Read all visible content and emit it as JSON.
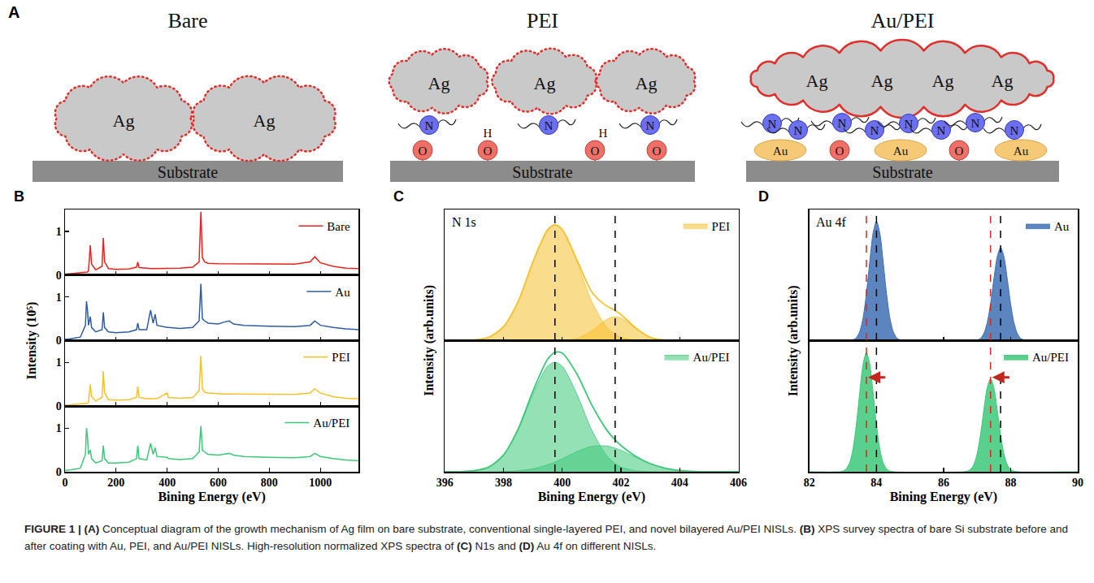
{
  "diagram": {
    "label": "A",
    "panels": [
      {
        "title": "Bare",
        "film": [
          "Ag",
          "Ag"
        ],
        "substrate": "Substrate"
      },
      {
        "title": "PEI",
        "film": [
          "Ag",
          "Ag",
          "Ag"
        ],
        "linkers": [
          "N",
          "H",
          "N",
          "H",
          "N"
        ],
        "surface": [
          "O",
          "O",
          "O",
          "O"
        ],
        "substrate": "Substrate"
      },
      {
        "title": "Au/PEI",
        "film": [
          "Ag",
          "Ag",
          "Ag",
          "Ag"
        ],
        "linkers": [
          "N",
          "N",
          "N",
          "N",
          "N",
          "N",
          "N",
          "N"
        ],
        "surface": [
          "Au",
          "O",
          "Au",
          "O",
          "Au"
        ],
        "substrate": "Substrate"
      }
    ]
  },
  "chart_data": [
    {
      "label": "B",
      "type": "line",
      "x_title": "Bining Energy (eV)",
      "y_title": "Intensity (10⁵)",
      "xlim": [
        0,
        1150
      ],
      "xticks": [
        0,
        200,
        400,
        600,
        800,
        1000
      ],
      "ylim": [
        0,
        1.5
      ],
      "yticks": [
        0,
        1
      ],
      "legend": "upper right",
      "x": [
        0,
        20,
        60,
        80,
        84,
        88,
        92,
        99,
        104,
        120,
        145,
        150,
        155,
        170,
        200,
        250,
        280,
        285,
        290,
        320,
        335,
        345,
        353,
        360,
        400,
        405,
        450,
        500,
        525,
        532,
        538,
        547,
        560,
        600,
        620,
        643,
        660,
        700,
        800,
        900,
        960,
        978,
        1000,
        1050,
        1100,
        1150
      ],
      "series": [
        {
          "name": "Bare",
          "color": "#e8231c",
          "values": [
            0.02,
            0.03,
            0.05,
            0.06,
            0.07,
            0.07,
            0.1,
            0.68,
            0.25,
            0.12,
            0.2,
            0.85,
            0.3,
            0.15,
            0.13,
            0.14,
            0.18,
            0.3,
            0.17,
            0.15,
            0.15,
            0.15,
            0.15,
            0.15,
            0.15,
            0.15,
            0.16,
            0.18,
            0.3,
            1.45,
            0.4,
            0.3,
            0.27,
            0.26,
            0.26,
            0.26,
            0.26,
            0.25,
            0.25,
            0.25,
            0.3,
            0.42,
            0.28,
            0.2,
            0.16,
            0.15
          ]
        },
        {
          "name": "Au",
          "color": "#2e5d9f",
          "values": [
            0.03,
            0.04,
            0.08,
            0.35,
            0.9,
            0.7,
            0.35,
            0.55,
            0.3,
            0.2,
            0.25,
            0.65,
            0.3,
            0.2,
            0.18,
            0.2,
            0.25,
            0.4,
            0.25,
            0.25,
            0.7,
            0.4,
            0.6,
            0.35,
            0.3,
            0.3,
            0.28,
            0.3,
            0.45,
            1.3,
            0.5,
            0.45,
            0.4,
            0.38,
            0.42,
            0.45,
            0.38,
            0.35,
            0.33,
            0.32,
            0.35,
            0.45,
            0.35,
            0.3,
            0.27,
            0.25
          ]
        },
        {
          "name": "PEI",
          "color": "#f5c12e",
          "values": [
            0.02,
            0.03,
            0.05,
            0.06,
            0.07,
            0.07,
            0.1,
            0.5,
            0.22,
            0.12,
            0.2,
            0.8,
            0.3,
            0.15,
            0.14,
            0.15,
            0.2,
            0.45,
            0.2,
            0.17,
            0.17,
            0.17,
            0.17,
            0.17,
            0.3,
            0.2,
            0.18,
            0.2,
            0.35,
            1.15,
            0.4,
            0.32,
            0.3,
            0.28,
            0.28,
            0.28,
            0.28,
            0.27,
            0.27,
            0.27,
            0.3,
            0.4,
            0.3,
            0.22,
            0.18,
            0.17
          ]
        },
        {
          "name": "Au/PEI",
          "color": "#3cc878",
          "values": [
            0.03,
            0.04,
            0.08,
            0.4,
            1.0,
            0.8,
            0.4,
            0.5,
            0.3,
            0.2,
            0.25,
            0.6,
            0.3,
            0.2,
            0.2,
            0.22,
            0.3,
            0.6,
            0.3,
            0.27,
            0.65,
            0.4,
            0.55,
            0.35,
            0.33,
            0.3,
            0.28,
            0.3,
            0.45,
            1.05,
            0.5,
            0.45,
            0.4,
            0.38,
            0.4,
            0.42,
            0.38,
            0.35,
            0.33,
            0.32,
            0.35,
            0.42,
            0.35,
            0.3,
            0.27,
            0.25
          ]
        }
      ]
    },
    {
      "label": "C",
      "type": "area",
      "title": "N 1s",
      "x_title": "Bining Energy (eV)",
      "y_title": "Intensity (arb.units)",
      "xlim": [
        396,
        406
      ],
      "xticks": [
        396,
        398,
        400,
        402,
        404,
        406
      ],
      "ylim": [
        0,
        1.1
      ],
      "tick_labels": "x",
      "legend": "upper right",
      "x": [
        396,
        396.5,
        397,
        397.5,
        398,
        398.5,
        399,
        399.5,
        399.75,
        400,
        400.5,
        401,
        401.5,
        401.75,
        402,
        402.5,
        403,
        403.5,
        404,
        404.5,
        405,
        406
      ],
      "reference_lines": [
        {
          "x": 399.75,
          "color": "#000000"
        },
        {
          "x": 401.8,
          "color": "#000000"
        }
      ],
      "series": [
        {
          "name": "PEI",
          "color": "#f5c12e",
          "values": [
            0,
            0,
            0.005,
            0.029,
            0.116,
            0.329,
            0.658,
            0.929,
            0.971,
            0.931,
            0.677,
            0.411,
            0.292,
            0.26,
            0.218,
            0.106,
            0.027,
            0.004,
            0,
            0,
            0,
            0
          ],
          "components": [
            [
              0,
              0,
              0.005,
              0.029,
              0.116,
              0.329,
              0.658,
              0.929,
              0.97,
              0.929,
              0.658,
              0.329,
              0.116,
              0.061,
              0.029,
              0.005,
              0,
              0,
              0,
              0,
              0,
              0
            ],
            [
              0,
              0,
              0,
              0,
              0,
              0,
              0,
              0,
              0.001,
              0.002,
              0.019,
              0.082,
              0.176,
              0.199,
              0.189,
              0.101,
              0.027,
              0.004,
              0,
              0,
              0,
              0
            ]
          ]
        },
        {
          "name": "Au/PEI",
          "color": "#3cc878",
          "values": [
            0,
            0.001,
            0.009,
            0.04,
            0.141,
            0.36,
            0.675,
            0.943,
            1.001,
            0.994,
            0.819,
            0.563,
            0.355,
            0.28,
            0.22,
            0.13,
            0.068,
            0.03,
            0.011,
            0.003,
            0.001,
            0
          ],
          "components": [
            [
              0,
              0.001,
              0.009,
              0.04,
              0.139,
              0.351,
              0.65,
              0.885,
              0.92,
              0.885,
              0.65,
              0.351,
              0.139,
              0.078,
              0.04,
              0.009,
              0.001,
              0,
              0,
              0,
              0,
              0
            ],
            [
              0,
              0,
              0,
              0,
              0.002,
              0.009,
              0.025,
              0.058,
              0.081,
              0.109,
              0.169,
              0.212,
              0.216,
              0.202,
              0.18,
              0.121,
              0.067,
              0.03,
              0.011,
              0.003,
              0.001,
              0
            ]
          ]
        }
      ]
    },
    {
      "label": "D",
      "type": "area",
      "title": "Au 4f",
      "x_title": "Bining Energy (eV)",
      "y_title": "Intensity (arb.units)",
      "xlim": [
        82,
        90
      ],
      "xticks": [
        82,
        84,
        86,
        88,
        90
      ],
      "ylim": [
        0,
        1.1
      ],
      "tick_labels": "x",
      "legend": "upper right",
      "reference_lines": [
        {
          "x": 84.0,
          "color": "#000000"
        },
        {
          "x": 87.7,
          "color": "#000000"
        },
        {
          "x": 83.7,
          "color": "#d62a1e"
        },
        {
          "x": 87.4,
          "color": "#d62a1e"
        }
      ],
      "series": [
        {
          "name": "Au",
          "color": "#3f6fb3",
          "x": [
            82,
            83.2,
            83.3,
            83.4,
            83.5,
            83.6,
            83.7,
            83.8,
            83.9,
            84,
            84.1,
            84.2,
            84.3,
            84.4,
            84.5,
            84.6,
            84.7,
            84.8,
            86.9,
            87,
            87.1,
            87.2,
            87.3,
            87.4,
            87.5,
            87.6,
            87.7,
            87.8,
            87.9,
            88,
            88.1,
            88.2,
            88.3,
            88.4,
            88.5,
            90
          ],
          "values": [
            0,
            0,
            0.006,
            0.024,
            0.076,
            0.191,
            0.395,
            0.661,
            0.902,
            1,
            0.902,
            0.661,
            0.395,
            0.191,
            0.076,
            0.024,
            0.006,
            0,
            0,
            0.005,
            0.019,
            0.059,
            0.149,
            0.308,
            0.516,
            0.704,
            0.78,
            0.704,
            0.516,
            0.308,
            0.149,
            0.059,
            0.019,
            0.005,
            0,
            0
          ]
        },
        {
          "name": "Au/PEI",
          "color": "#3cc878",
          "x": [
            82,
            82.9,
            83,
            83.1,
            83.2,
            83.3,
            83.4,
            83.5,
            83.6,
            83.7,
            83.8,
            83.9,
            84,
            84.1,
            84.2,
            84.3,
            84.4,
            84.5,
            86.6,
            86.7,
            86.8,
            86.9,
            87,
            87.1,
            87.2,
            87.3,
            87.4,
            87.5,
            87.6,
            87.7,
            87.8,
            87.9,
            88,
            88.1,
            88.2,
            90
          ],
          "values": [
            0,
            0,
            0.006,
            0.024,
            0.076,
            0.191,
            0.395,
            0.661,
            0.902,
            1,
            0.902,
            0.661,
            0.395,
            0.191,
            0.076,
            0.024,
            0.006,
            0,
            0,
            0.005,
            0.019,
            0.059,
            0.149,
            0.308,
            0.516,
            0.704,
            0.78,
            0.704,
            0.516,
            0.308,
            0.149,
            0.059,
            0.019,
            0.005,
            0,
            0
          ],
          "arrows": [
            {
              "from": 84.3,
              "to": 83.75
            },
            {
              "from": 88.0,
              "to": 87.45
            }
          ]
        }
      ]
    }
  ],
  "caption": {
    "figure": "FIGURE 1 |",
    "segments": [
      {
        "bold": "(A)",
        "text": "Conceptual diagram of the growth mechanism of Ag film on bare substrate, conventional single-layered PEI, and novel bilayered Au/PEI NISLs."
      },
      {
        "bold": "(B)",
        "text": "XPS survey spectra of bare Si substrate before and after coating with Au, PEI, and Au/PEI NISLs. High-resolution normalized XPS spectra of"
      },
      {
        "bold": "(C)",
        "text": "N1s and"
      },
      {
        "bold": "(D)",
        "text": "Au 4f on different NISLs."
      }
    ]
  }
}
